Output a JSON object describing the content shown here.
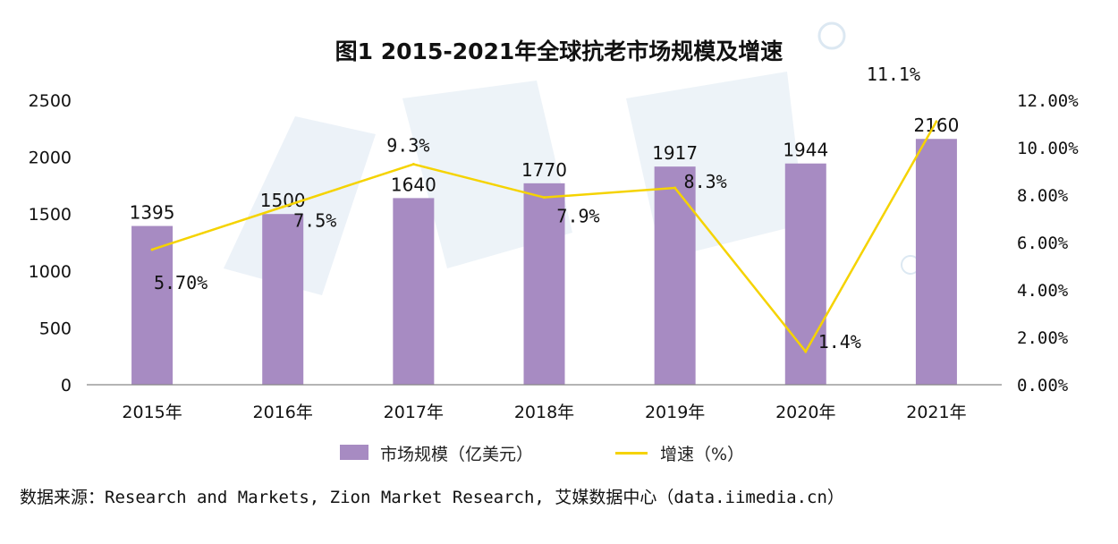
{
  "title": "图1 2015-2021年全球抗老市场规模及增速",
  "legend": {
    "bar_label": "市场规模（亿美元）",
    "line_label": "增速（%）"
  },
  "source": "数据来源：Research and Markets, Zion Market Research, 艾媒数据中心（data.iimedia.cn）",
  "colors": {
    "bar": "#a78bc2",
    "line": "#f5d300",
    "axis": "#888888",
    "watermark": "#dce8f2"
  },
  "chart_data": {
    "type": "bar",
    "title": "图1 2015-2021年全球抗老市场规模及增速",
    "categories": [
      "2015年",
      "2016年",
      "2017年",
      "2018年",
      "2019年",
      "2020年",
      "2021年"
    ],
    "series": [
      {
        "name": "市场规模（亿美元）",
        "type": "bar",
        "axis": "left",
        "values": [
          1395,
          1500,
          1640,
          1770,
          1917,
          1944,
          2160
        ],
        "labels": [
          "1395",
          "1500",
          "1640",
          "1770",
          "1917",
          "1944",
          "2160"
        ]
      },
      {
        "name": "增速（%）",
        "type": "line",
        "axis": "right",
        "values": [
          5.7,
          7.5,
          9.3,
          7.9,
          8.3,
          1.4,
          11.1
        ],
        "labels": [
          "5.70%",
          "7.5%",
          "9.3%",
          "7.9%",
          "8.3%",
          "1.4%",
          "11.1%"
        ]
      }
    ],
    "y_left": {
      "ylim": [
        0,
        2500
      ],
      "ticks": [
        "0",
        "500",
        "1000",
        "1500",
        "2000",
        "2500"
      ]
    },
    "y_right": {
      "ylim": [
        0,
        12
      ],
      "ticks": [
        "0.00%",
        "2.00%",
        "4.00%",
        "6.00%",
        "8.00%",
        "10.00%",
        "12.00%"
      ]
    },
    "grid": false,
    "legend_position": "bottom"
  }
}
